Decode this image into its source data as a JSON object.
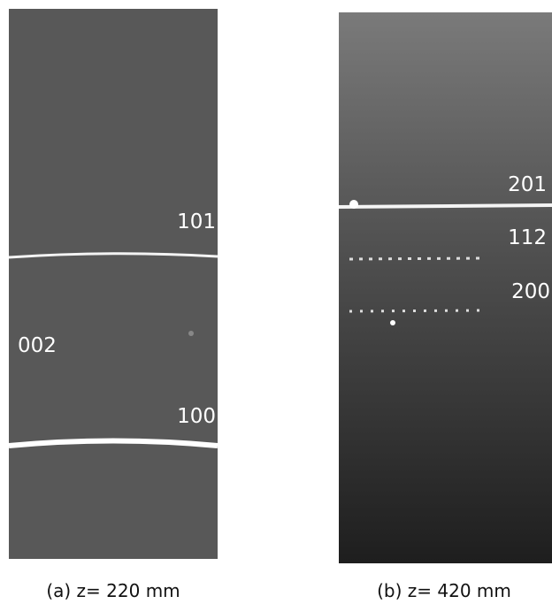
{
  "panels": [
    {
      "labels": [
        "101",
        "002",
        "100"
      ],
      "caption": "(a) z= 220 mm"
    },
    {
      "labels": [
        "201",
        "112",
        "200"
      ],
      "caption": "(b) z= 420 mm"
    }
  ]
}
